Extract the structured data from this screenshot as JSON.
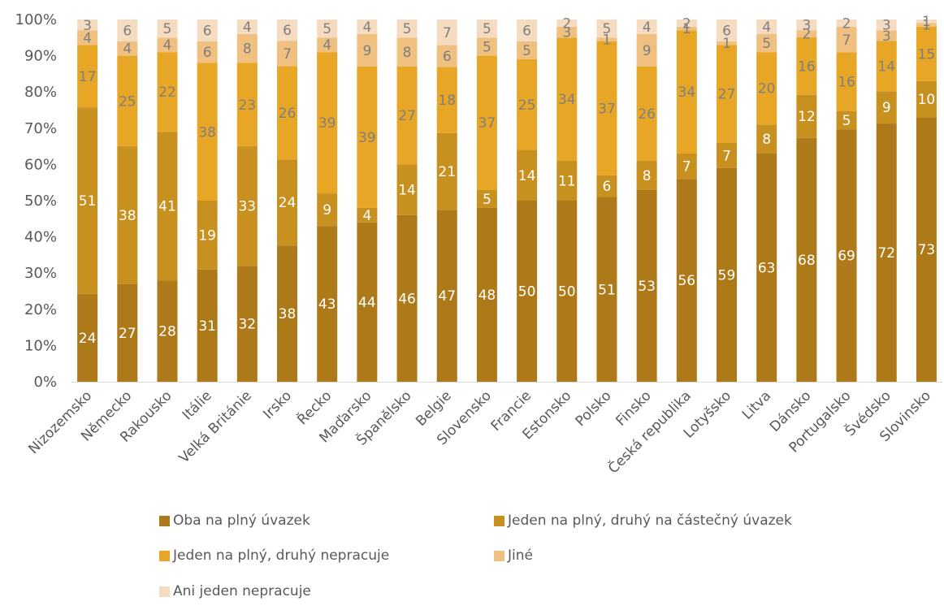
{
  "chart_data": {
    "type": "bar",
    "stacked": true,
    "normalized": true,
    "categories": [
      "Nizozemsko",
      "Německo",
      "Rakousko",
      "Itálie",
      "Velká Británie",
      "Irsko",
      "Řecko",
      "Maďarsko",
      "Španělsko",
      "Belgie",
      "Slovensko",
      "Francie",
      "Estonsko",
      "Polsko",
      "Finsko",
      "Česká republika",
      "Lotyšsko",
      "Litva",
      "Dánsko",
      "Portugalsko",
      "Švédsko",
      "Slovinsko"
    ],
    "series": [
      {
        "name": "Oba na plný úvazek",
        "color": "#ae7a19",
        "label_color": "#ffffff",
        "values": [
          24,
          27,
          28,
          31,
          32,
          38,
          43,
          44,
          46,
          47,
          48,
          50,
          50,
          51,
          53,
          56,
          59,
          63,
          68,
          69,
          72,
          73
        ]
      },
      {
        "name": "Jeden na plný, druhý na částečný úvazek",
        "color": "#c8901f",
        "label_color": "#ffffff",
        "values": [
          51,
          38,
          41,
          19,
          33,
          24,
          9,
          4,
          14,
          21,
          5,
          14,
          11,
          6,
          8,
          7,
          7,
          8,
          12,
          5,
          9,
          10
        ]
      },
      {
        "name": "Jeden na plný, druhý nepracuje",
        "color": "#e7a626",
        "label_color": "#7f7f7f",
        "values": [
          17,
          25,
          22,
          38,
          23,
          26,
          39,
          39,
          27,
          18,
          37,
          25,
          34,
          37,
          26,
          34,
          27,
          20,
          16,
          16,
          14,
          15
        ]
      },
      {
        "name": "Jiné",
        "color": "#efc080",
        "label_color": "#7f7f7f",
        "values": [
          4,
          4,
          4,
          6,
          8,
          7,
          4,
          9,
          8,
          6,
          5,
          5,
          3,
          1,
          9,
          1,
          1,
          5,
          2,
          7,
          3,
          1
        ]
      },
      {
        "name": "Ani jeden nepracuje",
        "color": "#f5dcc0",
        "label_color": "#7f7f7f",
        "values": [
          3,
          6,
          5,
          6,
          4,
          6,
          5,
          4,
          5,
          7,
          5,
          6,
          2,
          5,
          4,
          2,
          6,
          4,
          3,
          2,
          3,
          1
        ]
      }
    ],
    "y_ticks": [
      "0%",
      "10%",
      "20%",
      "30%",
      "40%",
      "50%",
      "60%",
      "70%",
      "80%",
      "90%",
      "100%"
    ],
    "ylim": [
      0,
      100
    ],
    "grid": false,
    "legend_position": "bottom"
  }
}
